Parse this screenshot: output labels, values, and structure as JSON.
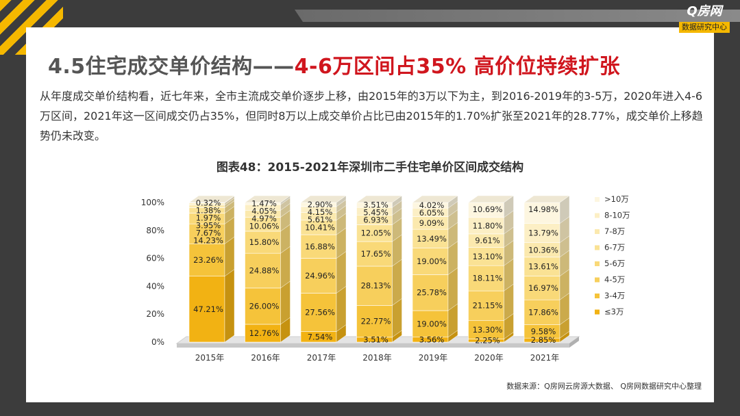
{
  "logo": {
    "main": "Q房网",
    "sub": "数据研究中心"
  },
  "title": {
    "prefix": "4.5住宅成交单价结构——",
    "highlight": "4-6万区间占35% 高价位持续扩张"
  },
  "paragraph": "从年度成交单价结构看，近七年来，全市主流成交单价逐步上移，由2015年的3万以下为主，到2016-2019年的3-5万，2020年进入4-6万区间，2021年这一区间成交仍占35%，但同时8万以上成交单价占比已由2015年的1.70%扩张至2021年的28.77%，成交单价上移趋势仍未改变。",
  "source": "数据来源：Q房网云房源大数据、 Q房网数据研究中心整理",
  "chart_data": {
    "type": "bar",
    "stacked": true,
    "title": "图表48：2015-2021年深圳市二手住宅单价区间成交结构",
    "categories": [
      "2015年",
      "2016年",
      "2017年",
      "2018年",
      "2019年",
      "2020年",
      "2021年"
    ],
    "yticks": [
      "0%",
      "20%",
      "40%",
      "60%",
      "80%",
      "100%"
    ],
    "ylim": [
      0,
      100
    ],
    "legend_position": "right",
    "series": [
      {
        "name": "≤3万",
        "color": "#f2b213",
        "values": [
          47.21,
          12.76,
          7.54,
          3.51,
          3.56,
          2.25,
          2.85
        ],
        "labels": [
          "47.21%",
          "12.76%",
          "7.54%",
          "3.51%",
          "3.56%",
          "2.25%",
          "2.85%"
        ]
      },
      {
        "name": "3-4万",
        "color": "#f5c33a",
        "values": [
          23.26,
          26.0,
          27.56,
          22.77,
          19.0,
          13.3,
          9.58
        ],
        "labels": [
          "23.26%",
          "26.00%",
          "27.56%",
          "22.77%",
          "19.00%",
          "13.30%",
          "9.58%"
        ]
      },
      {
        "name": "4-5万",
        "color": "#f7cf5c",
        "values": [
          14.23,
          24.88,
          24.96,
          28.13,
          25.78,
          21.15,
          17.86
        ],
        "labels": [
          "14.23%",
          "24.88%",
          "24.96%",
          "28.13%",
          "25.78%",
          "21.15%",
          "17.86%"
        ]
      },
      {
        "name": "5-6万",
        "color": "#f9d978",
        "values": [
          7.67,
          15.8,
          16.88,
          17.65,
          19.0,
          18.11,
          16.97
        ],
        "labels": [
          "7.67%",
          "15.80%",
          "16.88%",
          "17.65%",
          "19.00%",
          "18.11%",
          "16.97%"
        ]
      },
      {
        "name": "6-7万",
        "color": "#fae294",
        "values": [
          3.95,
          10.06,
          10.41,
          12.05,
          13.49,
          13.1,
          13.61
        ],
        "labels": [
          "3.95%",
          "10.06%",
          "10.41%",
          "12.05%",
          "13.49%",
          "13.10%",
          "13.61%"
        ]
      },
      {
        "name": "7-8万",
        "color": "#fbe9ae",
        "values": [
          1.97,
          4.97,
          5.61,
          6.93,
          9.09,
          9.61,
          10.36
        ],
        "labels": [
          "1.97%",
          "4.97%",
          "5.61%",
          "6.93%",
          "9.09%",
          "9.61%",
          "10.36%"
        ]
      },
      {
        "name": "8-10万",
        "color": "#fcefc5",
        "values": [
          1.38,
          4.05,
          4.15,
          5.45,
          6.05,
          11.8,
          13.79
        ],
        "labels": [
          "1.38%",
          "4.05%",
          "4.15%",
          "5.45%",
          "6.05%",
          "11.80%",
          "13.79%"
        ]
      },
      {
        "name": ">10万",
        "color": "#fdf6e0",
        "values": [
          0.32,
          1.47,
          2.9,
          3.51,
          4.02,
          10.69,
          14.98
        ],
        "labels": [
          "0.32%",
          "1.47%",
          "2.90%",
          "3.51%",
          "4.02%",
          "10.69%",
          "14.98%"
        ]
      }
    ]
  }
}
